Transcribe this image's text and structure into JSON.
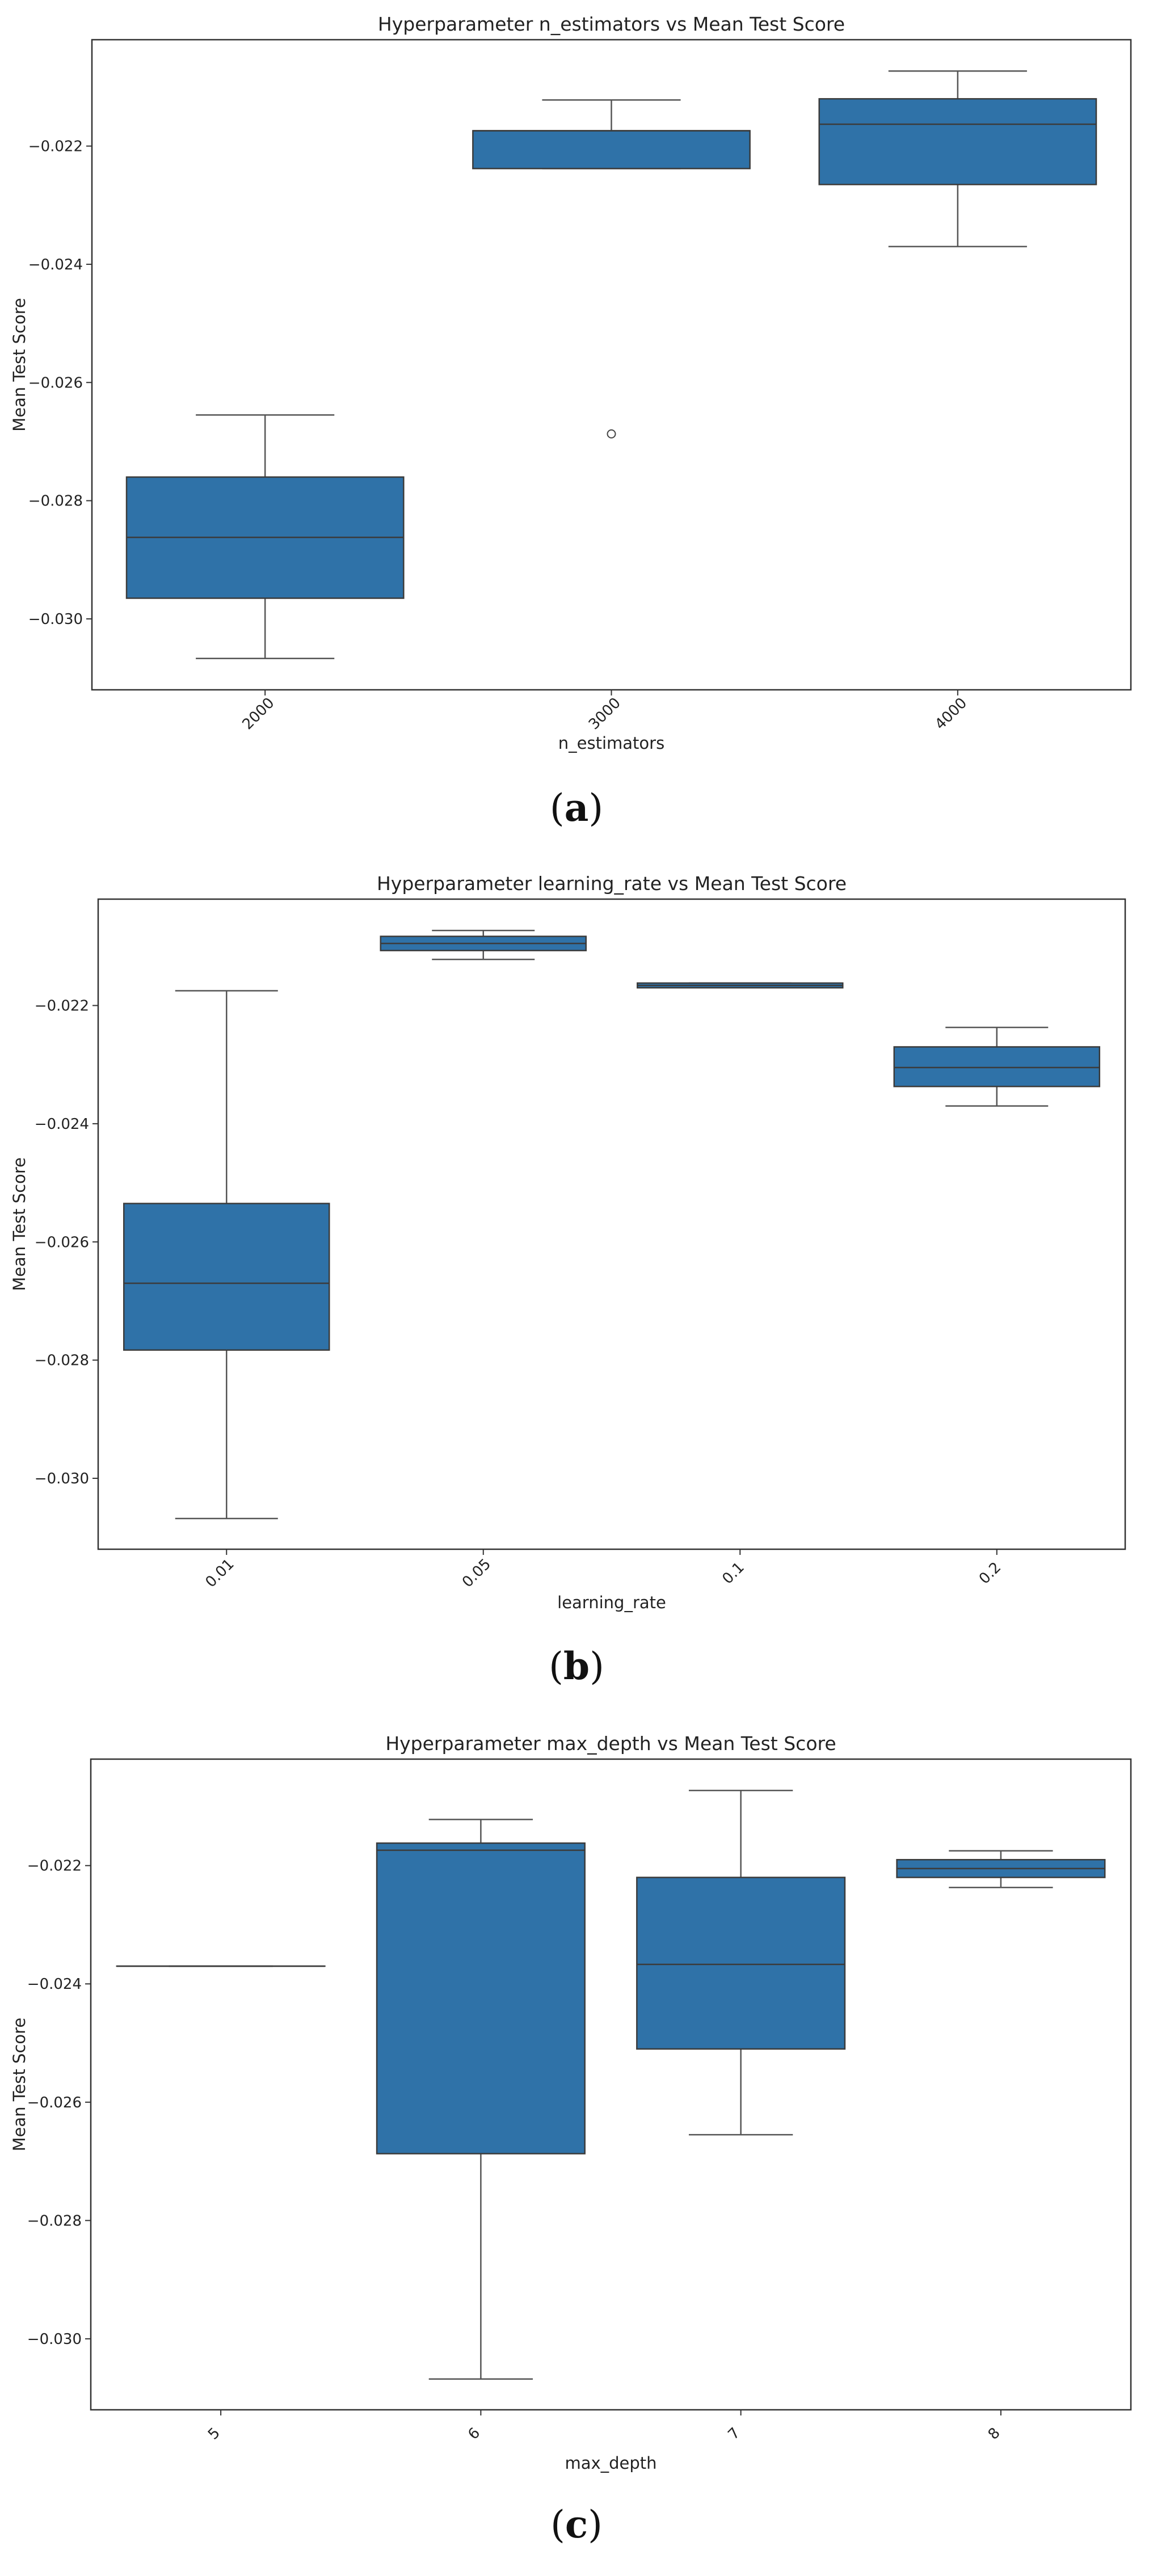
{
  "chart_data": [
    {
      "type": "box",
      "title": "Hyperparameter n_estimators vs Mean Test Score",
      "xlabel": "n_estimators",
      "ylabel": "Mean Test Score",
      "ylim": [
        -0.0312,
        -0.0202
      ],
      "yticks": [
        "−0.030",
        "−0.028",
        "−0.026",
        "−0.024",
        "−0.022"
      ],
      "yticks_values": [
        -0.03,
        -0.028,
        -0.026,
        -0.024,
        -0.022
      ],
      "categories": [
        "2000",
        "3000",
        "4000"
      ],
      "boxes": [
        {
          "whislo": -0.03067,
          "q1": -0.02965,
          "med": -0.02862,
          "q3": -0.0276,
          "whishi": -0.02655,
          "fliers": []
        },
        {
          "whislo": -0.02238,
          "q1": -0.02238,
          "med": -0.02174,
          "q3": -0.02174,
          "whishi": -0.02122,
          "fliers": [
            -0.02687
          ]
        },
        {
          "whislo": -0.0237,
          "q1": -0.02265,
          "med": -0.02163,
          "q3": -0.0212,
          "whishi": -0.02073,
          "fliers": []
        }
      ],
      "color": "#2f72a8",
      "caption": "a"
    },
    {
      "type": "box",
      "title": "Hyperparameter learning_rate vs Mean Test Score",
      "xlabel": "learning_rate",
      "ylabel": "Mean Test Score",
      "ylim": [
        -0.0312,
        -0.0202
      ],
      "yticks": [
        "−0.030",
        "−0.028",
        "−0.026",
        "−0.024",
        "−0.022"
      ],
      "yticks_values": [
        -0.03,
        -0.028,
        -0.026,
        -0.024,
        -0.022
      ],
      "categories": [
        "0.01",
        "0.05",
        "0.1",
        "0.2"
      ],
      "boxes": [
        {
          "whislo": -0.03068,
          "q1": -0.02783,
          "med": -0.0267,
          "q3": -0.02535,
          "whishi": -0.02175,
          "fliers": []
        },
        {
          "whislo": -0.02122,
          "q1": -0.02107,
          "med": -0.02095,
          "q3": -0.02083,
          "whishi": -0.02073,
          "fliers": []
        },
        {
          "whislo": -0.0217,
          "q1": -0.0217,
          "med": -0.02166,
          "q3": -0.02162,
          "whishi": -0.02162,
          "fliers": []
        },
        {
          "whislo": -0.0237,
          "q1": -0.02337,
          "med": -0.02305,
          "q3": -0.0227,
          "whishi": -0.02237,
          "fliers": []
        }
      ],
      "color": "#2f72a8",
      "caption": "b"
    },
    {
      "type": "box",
      "title": "Hyperparameter max_depth vs Mean Test Score",
      "xlabel": "max_depth",
      "ylabel": "Mean Test Score",
      "ylim": [
        -0.0312,
        -0.0202
      ],
      "yticks": [
        "−0.030",
        "−0.028",
        "−0.026",
        "−0.024",
        "−0.022"
      ],
      "yticks_values": [
        -0.03,
        -0.028,
        -0.026,
        -0.024,
        -0.022
      ],
      "categories": [
        "5",
        "6",
        "7",
        "8"
      ],
      "boxes": [
        {
          "whislo": -0.0237,
          "q1": -0.0237,
          "med": -0.0237,
          "q3": -0.0237,
          "whishi": -0.0237,
          "fliers": []
        },
        {
          "whislo": -0.03068,
          "q1": -0.02687,
          "med": -0.02174,
          "q3": -0.02162,
          "whishi": -0.02122,
          "fliers": []
        },
        {
          "whislo": -0.02655,
          "q1": -0.0251,
          "med": -0.02367,
          "q3": -0.0222,
          "whishi": -0.02073,
          "fliers": []
        },
        {
          "whislo": -0.02237,
          "q1": -0.0222,
          "med": -0.02205,
          "q3": -0.0219,
          "whishi": -0.02175,
          "fliers": []
        }
      ],
      "color": "#2f72a8",
      "caption": "c"
    }
  ]
}
